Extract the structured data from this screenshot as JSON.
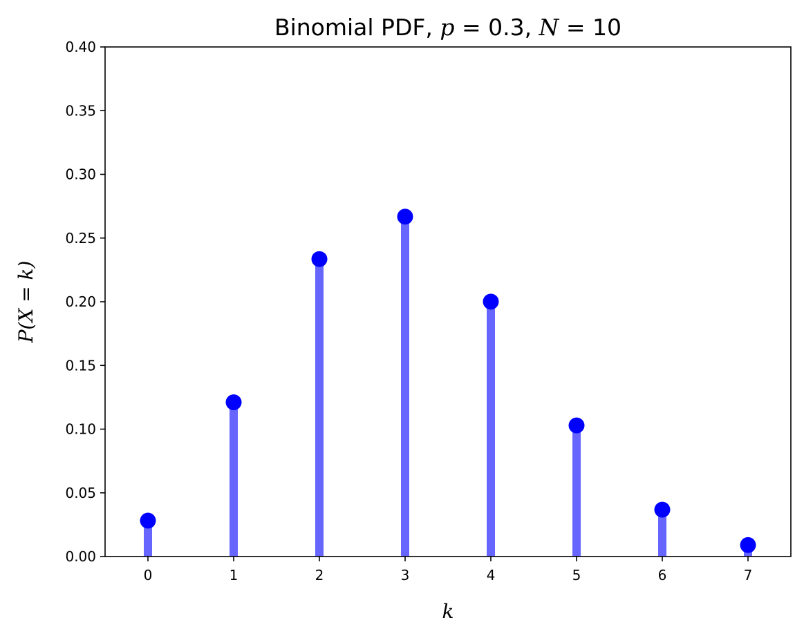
{
  "chart_data": {
    "type": "stem",
    "title": {
      "prefix": "Binomial PDF, ",
      "p_symbol": "p",
      "p_value": " = 0.3, ",
      "n_symbol": "N",
      "n_value": " = 10"
    },
    "xlabel": "k",
    "ylabel": "P(X = k)",
    "x": [
      0,
      1,
      2,
      3,
      4,
      5,
      6,
      7
    ],
    "values": [
      0.0282,
      0.1211,
      0.2335,
      0.2668,
      0.2001,
      0.1029,
      0.0368,
      0.009
    ],
    "xlim": [
      -0.5,
      7.5
    ],
    "ylim": [
      0,
      0.4
    ],
    "xticks": [
      "0",
      "1",
      "2",
      "3",
      "4",
      "5",
      "6",
      "7"
    ],
    "yticks": [
      "0.00",
      "0.05",
      "0.10",
      "0.15",
      "0.20",
      "0.25",
      "0.30",
      "0.35",
      "0.40"
    ],
    "grid": false,
    "colors": {
      "stem": "#6666ff",
      "marker": "#0000ff",
      "axes": "#000000"
    }
  }
}
